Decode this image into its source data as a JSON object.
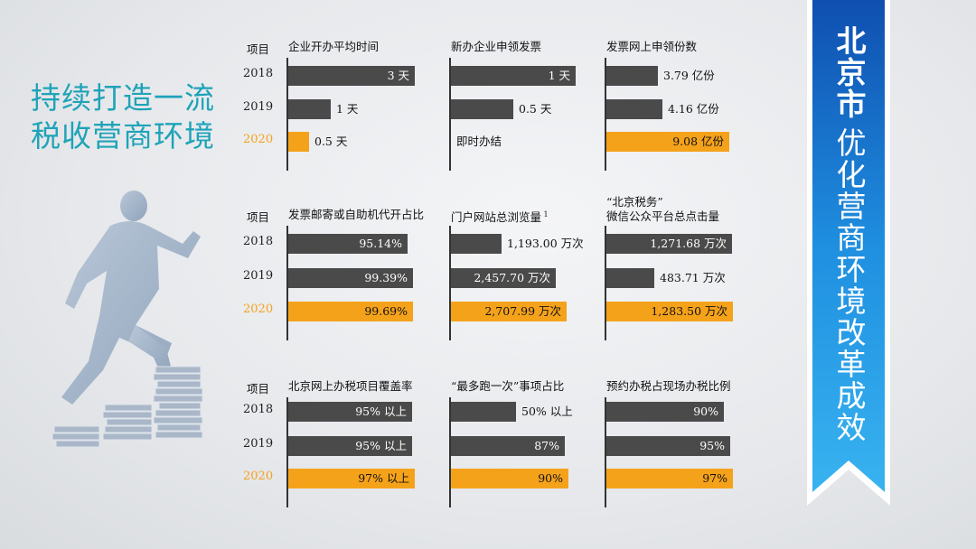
{
  "headline": {
    "line1": "持续打造一流",
    "line2": "税收营商环境"
  },
  "banner": {
    "line1": "北京市",
    "line2": "优化营商环境改革成效"
  },
  "row_header": "项目",
  "years": [
    "2018",
    "2019",
    "2020"
  ],
  "colors": {
    "previous": "#4a4a4a",
    "current": "#f5a21b",
    "accent": "#1fa3b8",
    "banner": "#1f8fe0"
  },
  "chart_data": [
    {
      "type": "bar",
      "title": "企业开办平均时间",
      "categories": [
        "2018",
        "2019",
        "2020"
      ],
      "values": [
        3,
        1,
        0.5
      ],
      "unit": "天",
      "labels": [
        "3 天",
        "1 天",
        "0.5 天"
      ]
    },
    {
      "type": "bar",
      "title": "新办企业申领发票",
      "categories": [
        "2018",
        "2019",
        "2020"
      ],
      "values": [
        1,
        0.5,
        null
      ],
      "unit": "天",
      "labels": [
        "1 天",
        "0.5 天",
        "即时办结"
      ]
    },
    {
      "type": "bar",
      "title": "发票网上申领份数",
      "categories": [
        "2018",
        "2019",
        "2020"
      ],
      "values": [
        3.79,
        4.16,
        9.08
      ],
      "unit": "亿份",
      "labels": [
        "3.79 亿份",
        "4.16 亿份",
        "9.08 亿份"
      ]
    },
    {
      "type": "bar",
      "title": "发票邮寄或自助机代开占比",
      "categories": [
        "2018",
        "2019",
        "2020"
      ],
      "values": [
        95.14,
        99.39,
        99.69
      ],
      "unit": "%",
      "labels": [
        "95.14%",
        "99.39%",
        "99.69%"
      ]
    },
    {
      "type": "bar",
      "title": "门户网站总浏览量",
      "title_note": "1",
      "categories": [
        "2018",
        "2019",
        "2020"
      ],
      "values": [
        1193.0,
        2457.7,
        2707.99
      ],
      "unit": "万次",
      "labels": [
        "1,193.00 万次",
        "2,457.70 万次",
        "2,707.99 万次"
      ]
    },
    {
      "type": "bar",
      "title": "“北京税务”",
      "title2": "微信公众平台总点击量",
      "categories": [
        "2018",
        "2019",
        "2020"
      ],
      "values": [
        1271.68,
        483.71,
        1283.5
      ],
      "unit": "万次",
      "labels": [
        "1,271.68 万次",
        "483.71 万次",
        "1,283.50 万次"
      ]
    },
    {
      "type": "bar",
      "title": "北京网上办税项目覆盖率",
      "categories": [
        "2018",
        "2019",
        "2020"
      ],
      "values": [
        95,
        95,
        97
      ],
      "unit": "%",
      "labels": [
        "95% 以上",
        "95% 以上",
        "97% 以上"
      ]
    },
    {
      "type": "bar",
      "title": "“最多跑一次”事项占比",
      "categories": [
        "2018",
        "2019",
        "2020"
      ],
      "values": [
        50,
        87,
        90
      ],
      "unit": "%",
      "labels": [
        "50% 以上",
        "87%",
        "90%"
      ]
    },
    {
      "type": "bar",
      "title": "预约办税占现场办税比例",
      "categories": [
        "2018",
        "2019",
        "2020"
      ],
      "values": [
        90,
        95,
        97
      ],
      "unit": "%",
      "labels": [
        "90%",
        "95%",
        "97%"
      ]
    }
  ]
}
